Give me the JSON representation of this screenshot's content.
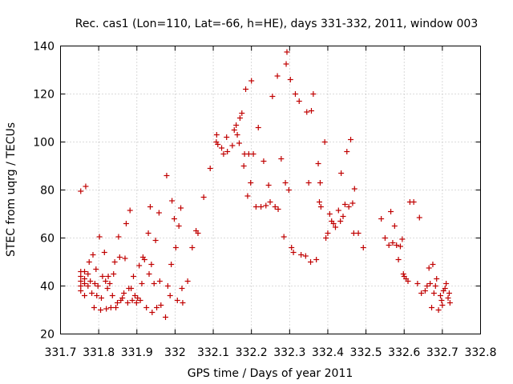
{
  "chart_data": {
    "type": "scatter",
    "title": "Rec. cas1 (Lon=110, Lat=-66, h=HE), days 331-332, 2011, window 003",
    "xlabel": "GPS time / Days of year 2011",
    "ylabel": "STEC from uqrg / TECUs",
    "xlim": [
      331.7,
      332.8
    ],
    "ylim": [
      20,
      140
    ],
    "xticks": [
      331.7,
      331.8,
      331.9,
      332.0,
      332.1,
      332.2,
      332.3,
      332.4,
      332.5,
      332.6,
      332.7,
      332.8
    ],
    "xtick_labels": [
      "331.7",
      "331.8",
      "331.9",
      "332",
      "332.1",
      "332.2",
      "332.3",
      "332.4",
      "332.5",
      "332.6",
      "332.7",
      "332.8"
    ],
    "yticks": [
      20,
      40,
      60,
      80,
      100,
      120,
      140
    ],
    "ytick_labels": [
      "20",
      "40",
      "60",
      "80",
      "100",
      "120",
      "140"
    ],
    "grid": true,
    "marker": "+",
    "color": "#c00000",
    "series": [
      {
        "points": [
          [
            331.753,
            38
          ],
          [
            331.753,
            40
          ],
          [
            331.753,
            42
          ],
          [
            331.753,
            44
          ],
          [
            331.753,
            46
          ],
          [
            331.753,
            79.5
          ],
          [
            331.763,
            36
          ],
          [
            331.763,
            41
          ],
          [
            331.763,
            43
          ],
          [
            331.763,
            46
          ],
          [
            331.766,
            81.5
          ],
          [
            331.772,
            40
          ],
          [
            331.772,
            45
          ],
          [
            331.775,
            50
          ],
          [
            331.778,
            42
          ],
          [
            331.782,
            37
          ],
          [
            331.785,
            53
          ],
          [
            331.788,
            31
          ],
          [
            331.79,
            41
          ],
          [
            331.793,
            47
          ],
          [
            331.795,
            36
          ],
          [
            331.798,
            40
          ],
          [
            331.802,
            60.5
          ],
          [
            331.805,
            30
          ],
          [
            331.807,
            35
          ],
          [
            331.81,
            44
          ],
          [
            331.815,
            54
          ],
          [
            331.818,
            42
          ],
          [
            331.82,
            30.5
          ],
          [
            331.823,
            39
          ],
          [
            331.825,
            44
          ],
          [
            331.829,
            41
          ],
          [
            331.832,
            31
          ],
          [
            331.836,
            36
          ],
          [
            331.839,
            45
          ],
          [
            331.842,
            50
          ],
          [
            331.845,
            31
          ],
          [
            331.849,
            33
          ],
          [
            331.852,
            60.5
          ],
          [
            331.855,
            52
          ],
          [
            331.858,
            34
          ],
          [
            331.862,
            35
          ],
          [
            331.866,
            37
          ],
          [
            331.869,
            51.5
          ],
          [
            331.872,
            66
          ],
          [
            331.876,
            33
          ],
          [
            331.879,
            39
          ],
          [
            331.882,
            71.5
          ],
          [
            331.885,
            39
          ],
          [
            331.888,
            34
          ],
          [
            331.891,
            44
          ],
          [
            331.895,
            36
          ],
          [
            331.899,
            33
          ],
          [
            331.902,
            35
          ],
          [
            331.906,
            48.5
          ],
          [
            331.909,
            34
          ],
          [
            331.913,
            41
          ],
          [
            331.916,
            52
          ],
          [
            331.92,
            51
          ],
          [
            331.925,
            31
          ],
          [
            331.93,
            62
          ],
          [
            331.932,
            45
          ],
          [
            331.935,
            73
          ],
          [
            331.938,
            49
          ],
          [
            331.94,
            29
          ],
          [
            331.945,
            41
          ],
          [
            331.949,
            59
          ],
          [
            331.952,
            31
          ],
          [
            331.958,
            70.5
          ],
          [
            331.96,
            42
          ],
          [
            331.963,
            32
          ],
          [
            331.975,
            27
          ],
          [
            331.978,
            86
          ],
          [
            331.981,
            40
          ],
          [
            331.987,
            36
          ],
          [
            331.99,
            49
          ],
          [
            331.992,
            75.5
          ],
          [
            331.998,
            68
          ],
          [
            332.002,
            56
          ],
          [
            332.006,
            34
          ],
          [
            332.01,
            65
          ],
          [
            332.015,
            72.5
          ],
          [
            332.018,
            39
          ],
          [
            332.02,
            33
          ],
          [
            332.033,
            42
          ],
          [
            332.045,
            56
          ],
          [
            332.055,
            63
          ],
          [
            332.06,
            62
          ],
          [
            332.075,
            77
          ],
          [
            332.092,
            89
          ],
          [
            332.108,
            100
          ],
          [
            332.109,
            103
          ],
          [
            332.112,
            99
          ],
          [
            332.122,
            97.5
          ],
          [
            332.127,
            95
          ],
          [
            332.135,
            102
          ],
          [
            332.137,
            96
          ],
          [
            332.15,
            98.5
          ],
          [
            332.155,
            105
          ],
          [
            332.16,
            107
          ],
          [
            332.163,
            103
          ],
          [
            332.168,
            99.5
          ],
          [
            332.17,
            110
          ],
          [
            332.175,
            112
          ],
          [
            332.18,
            90
          ],
          [
            332.182,
            95
          ],
          [
            332.185,
            122
          ],
          [
            332.19,
            77.5
          ],
          [
            332.193,
            95
          ],
          [
            332.198,
            83
          ],
          [
            332.2,
            125.5
          ],
          [
            332.205,
            95
          ],
          [
            332.212,
            73
          ],
          [
            332.218,
            106
          ],
          [
            332.225,
            73
          ],
          [
            332.232,
            92
          ],
          [
            332.238,
            73.5
          ],
          [
            332.245,
            82
          ],
          [
            332.249,
            75
          ],
          [
            332.255,
            119
          ],
          [
            332.262,
            73
          ],
          [
            332.268,
            127.5
          ],
          [
            332.27,
            72
          ],
          [
            332.278,
            93
          ],
          [
            332.285,
            60.5
          ],
          [
            332.289,
            83
          ],
          [
            332.291,
            132.5
          ],
          [
            332.293,
            137.5
          ],
          [
            332.298,
            80
          ],
          [
            332.302,
            126
          ],
          [
            332.305,
            56
          ],
          [
            332.31,
            54
          ],
          [
            332.315,
            120
          ],
          [
            332.325,
            117
          ],
          [
            332.33,
            53
          ],
          [
            332.342,
            52.5
          ],
          [
            332.345,
            112.5
          ],
          [
            332.35,
            83
          ],
          [
            332.355,
            50
          ],
          [
            332.357,
            113
          ],
          [
            332.362,
            120
          ],
          [
            332.37,
            51
          ],
          [
            332.375,
            91
          ],
          [
            332.378,
            75
          ],
          [
            332.38,
            83
          ],
          [
            332.382,
            73
          ],
          [
            332.392,
            100
          ],
          [
            332.395,
            60
          ],
          [
            332.4,
            62
          ],
          [
            332.405,
            70
          ],
          [
            332.41,
            67
          ],
          [
            332.415,
            66
          ],
          [
            332.42,
            64.5
          ],
          [
            332.428,
            71.5
          ],
          [
            332.433,
            67
          ],
          [
            332.435,
            87
          ],
          [
            332.44,
            69
          ],
          [
            332.445,
            74
          ],
          [
            332.45,
            96
          ],
          [
            332.455,
            73
          ],
          [
            332.46,
            101
          ],
          [
            332.465,
            74.5
          ],
          [
            332.468,
            62
          ],
          [
            332.47,
            80.5
          ],
          [
            332.48,
            62
          ],
          [
            332.493,
            56
          ],
          [
            332.54,
            68
          ],
          [
            332.55,
            60
          ],
          [
            332.56,
            57
          ],
          [
            332.565,
            71
          ],
          [
            332.57,
            58
          ],
          [
            332.575,
            65
          ],
          [
            332.58,
            57
          ],
          [
            332.585,
            51
          ],
          [
            332.59,
            56.5
          ],
          [
            332.595,
            59.5
          ],
          [
            332.598,
            45
          ],
          [
            332.6,
            44
          ],
          [
            332.605,
            43
          ],
          [
            332.61,
            42
          ],
          [
            332.615,
            75
          ],
          [
            332.625,
            75
          ],
          [
            332.635,
            41
          ],
          [
            332.64,
            68.5
          ],
          [
            332.645,
            37
          ],
          [
            332.655,
            38
          ],
          [
            332.66,
            40
          ],
          [
            332.665,
            47.5
          ],
          [
            332.668,
            41
          ],
          [
            332.672,
            31
          ],
          [
            332.675,
            49
          ],
          [
            332.678,
            37
          ],
          [
            332.682,
            40
          ],
          [
            332.685,
            43
          ],
          [
            332.69,
            30
          ],
          [
            332.695,
            36
          ],
          [
            332.698,
            34
          ],
          [
            332.7,
            32
          ],
          [
            332.703,
            38
          ],
          [
            332.707,
            39
          ],
          [
            332.71,
            41
          ],
          [
            332.715,
            35
          ],
          [
            332.718,
            37
          ],
          [
            332.72,
            33
          ]
        ]
      }
    ]
  }
}
